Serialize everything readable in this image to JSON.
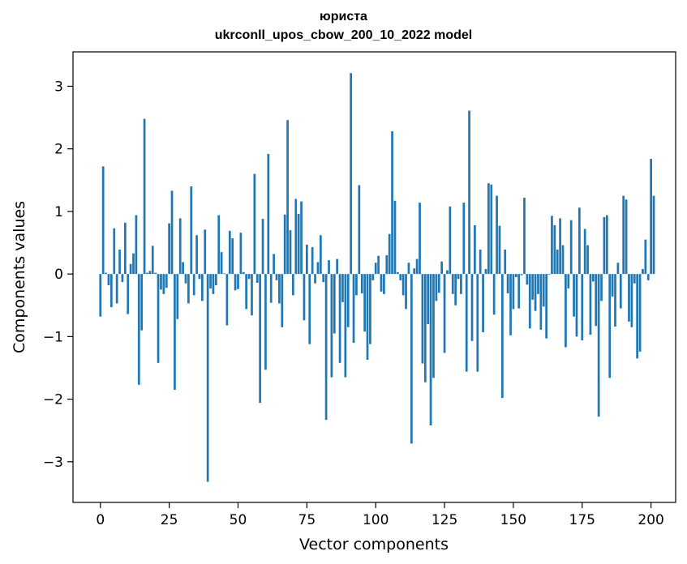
{
  "chart_data": {
    "type": "bar",
    "title_line1": "юриста",
    "title_line2": "ukrconll_upos_cbow_200_10_2022 model",
    "xlabel": "Vector components",
    "ylabel": "Components values",
    "xlim": [
      -9.95,
      208.95
    ],
    "ylim": [
      -3.65,
      3.55
    ],
    "xticks": [
      0,
      25,
      50,
      75,
      100,
      125,
      150,
      175,
      200
    ],
    "yticks": [
      -3,
      -2,
      -1,
      0,
      1,
      2,
      3
    ],
    "ytick_labels": [
      "−3",
      "−2",
      "−1",
      "0",
      "1",
      "2",
      "3"
    ],
    "bar_color": "#1f77b4",
    "grid": false,
    "values": [
      -0.68,
      1.72,
      0.02,
      -0.18,
      -0.53,
      0.73,
      -0.47,
      0.39,
      -0.13,
      0.82,
      -0.64,
      0.16,
      0.33,
      0.94,
      -1.77,
      -0.9,
      2.48,
      0.02,
      0.05,
      0.45,
      0.02,
      -1.42,
      -0.25,
      -0.32,
      -0.22,
      0.81,
      1.33,
      -1.85,
      -0.72,
      0.89,
      0.19,
      -0.15,
      -0.47,
      1.4,
      -0.34,
      0.62,
      -0.08,
      -0.43,
      0.71,
      -3.32,
      -0.23,
      -0.32,
      -0.18,
      0.94,
      0.35,
      0.01,
      -0.82,
      0.69,
      0.57,
      -0.26,
      -0.24,
      0.66,
      0.03,
      -0.56,
      -0.08,
      -0.66,
      1.6,
      -0.14,
      -2.06,
      0.88,
      -1.53,
      1.92,
      -0.46,
      0.32,
      -0.1,
      -0.47,
      -0.85,
      0.95,
      2.46,
      0.7,
      -0.34,
      1.2,
      0.96,
      1.16,
      -0.74,
      0.47,
      -1.12,
      0.43,
      -0.15,
      0.19,
      0.62,
      -0.13,
      -2.33,
      0.22,
      -1.65,
      -0.95,
      0.24,
      -1.42,
      -0.45,
      -1.65,
      -0.85,
      3.21,
      -1.1,
      -0.34,
      1.42,
      -0.31,
      -0.92,
      -1.37,
      -1.12,
      -0.1,
      0.18,
      0.29,
      -0.28,
      -0.32,
      0.3,
      0.64,
      2.28,
      1.17,
      0.03,
      -0.1,
      -0.34,
      -0.56,
      0.18,
      -2.71,
      0.09,
      0.24,
      1.14,
      -1.43,
      -1.73,
      -0.8,
      -2.42,
      -1.66,
      -0.43,
      -0.3,
      0.2,
      -1.26,
      0.06,
      1.08,
      -0.32,
      -0.5,
      -0.08,
      -0.32,
      1.14,
      -1.56,
      2.61,
      -1.07,
      0.78,
      -1.56,
      0.39,
      -0.93,
      0.08,
      1.45,
      1.43,
      -0.65,
      1.25,
      0.77,
      -1.98,
      0.39,
      -0.31,
      -0.98,
      -0.56,
      -0.05,
      -0.55,
      -0.02,
      1.22,
      -0.17,
      -0.87,
      -0.41,
      -0.59,
      -0.32,
      -0.89,
      -0.52,
      -1.03,
      -0.01,
      0.93,
      0.78,
      0.39,
      0.89,
      0.46,
      -1.17,
      -0.23,
      0.86,
      -0.68,
      -1.0,
      1.06,
      -1.06,
      0.72,
      0.46,
      -0.97,
      -0.12,
      -0.83,
      -2.28,
      -0.43,
      0.91,
      0.94,
      -1.66,
      -0.36,
      -0.84,
      0.18,
      -0.55,
      1.25,
      1.19,
      -0.76,
      -0.85,
      -0.15,
      -1.35,
      -1.24,
      0.08,
      0.55,
      -0.1,
      1.84,
      1.25
    ]
  }
}
